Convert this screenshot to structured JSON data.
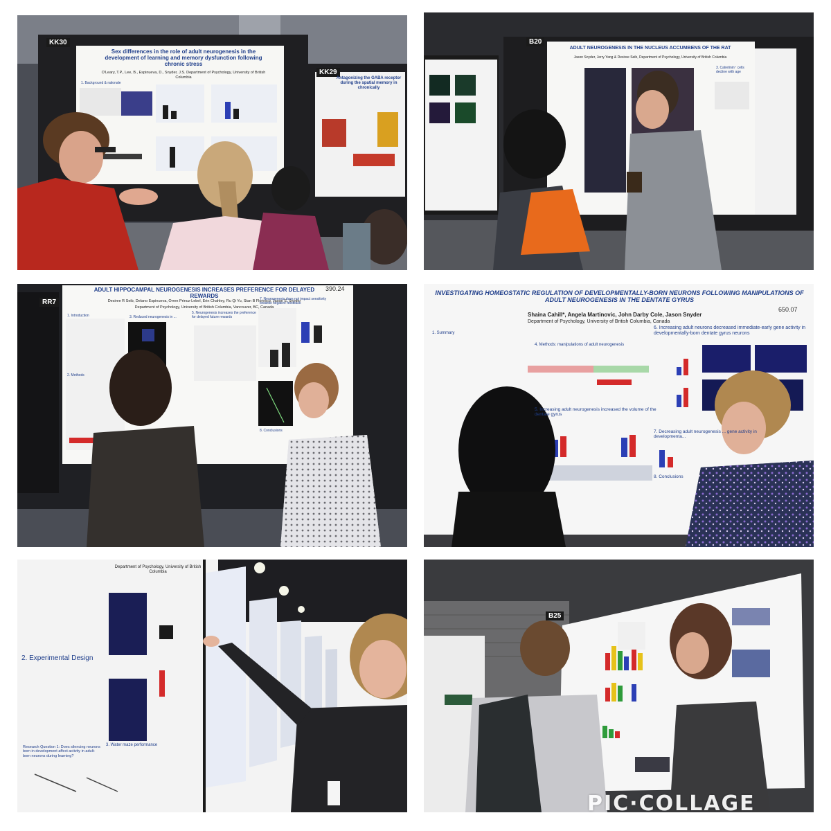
{
  "collage": {
    "watermark": "PIC·COLLAGE",
    "background_color": "#ffffff"
  },
  "tiles": [
    {
      "board_label": "KK30",
      "poster_title": "Sex differences in the role of adult neurogenesis in the development of learning and memory dysfunction following chronic stress",
      "poster_authors": "O'Leary, T.P., Lee, B., Espinueva, D., Snyder, J.S. Department of Psychology, University of British Columbia",
      "section_1": "1. Background & rationale",
      "board_label_2": "KK29",
      "poster_title_2": "Antagonizing the GABA receptor during the spatial memory in chronically"
    },
    {
      "board_label": "B20",
      "poster_title": "ADULT NEUROGENESIS IN THE NUCLEUS ACCUMBENS OF THE RAT",
      "poster_authors": "Jason Snyder, Jerry Yang & Desiree Seib, Department of Psychology, University of British Columbia",
      "section_1": "3. Calretinin⁺ cells decline with age"
    },
    {
      "board_label": "RR7",
      "poster_number": "390.24",
      "poster_title": "ADULT HIPPOCAMPAL NEUROGENESIS INCREASES PREFERENCE FOR DELAYED REWARDS",
      "poster_authors": "Desiree R Seib, Delano Espinueva, Orren Princz-Lebel, Erin Chahley, Ru Qi Yu, Stan B Floresco, Jason S. Snyder",
      "poster_affiliation": "Department of Psychology, University of British Columbia, Vancouver, BC, Canada",
      "section_1": "1. Introduction",
      "section_2": "3. Reduced neurogenesis in ...",
      "section_3": "5. Neurogenesis increases the preference for delayed future rewards",
      "section_4": "7. Neurogenesis does not impact sensitivity towards negative feedback",
      "section_5": "2. Methods",
      "section_6": "8. Conclusions"
    },
    {
      "poster_number": "650.07",
      "poster_title": "INVESTIGATING HOMEOSTATIC REGULATION OF DEVELOPMENTALLY-BORN NEURONS FOLLOWING MANIPULATIONS OF ADULT NEUROGENESIS IN THE DENTATE GYRUS",
      "poster_authors": "Shaina Cahill*, Angela Martinovic, John Darby Cole, Jason Snyder",
      "poster_affiliation": "Department of Psychology, University of British Columbia, Canada",
      "section_1": "1. Summary",
      "section_2": "4. Methods: manipulations of adult neurogenesis",
      "section_3": "6. Increasing adult neurons decreased immediate-early gene activity in developmentally-born dentate gyrus neurons",
      "section_4": "5. Increasing adult neurogenesis increased the volume of the dentate gyrus",
      "section_5": "7. Decreasing adult neurogenesis ... gene activity in developmenta...",
      "section_6": "8. Conclusions"
    },
    {
      "poster_affiliation": "Department of Psychology, University of British Columbia",
      "section_1": "2. Experimental Design",
      "section_2": "3. Water maze performance",
      "section_3": "Research Question 1: Does silencing neurons born in development affect activity in adult-born neurons during learning?"
    },
    {
      "board_label": "B25"
    }
  ],
  "colors": {
    "poster_title_blue": "#1e3d8a",
    "board_black": "#222222",
    "bar_red": "#d42a2a",
    "bar_blue": "#2c3fb5",
    "bar_yellow": "#e6c21a",
    "bar_green": "#2e9b3a",
    "bag_orange": "#e86a1c",
    "shirt_red": "#b8281e"
  }
}
